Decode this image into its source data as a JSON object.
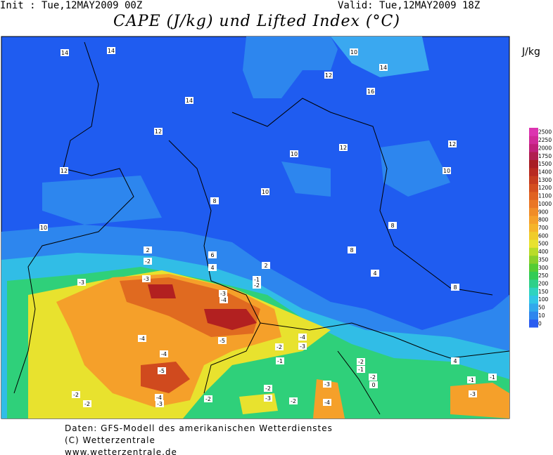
{
  "header": {
    "init": "Init : Tue,12MAY2009 00Z",
    "valid": "Valid: Tue,12MAY2009 18Z",
    "title": "CAPE (J/kg) und Lifted Index (°C)"
  },
  "legend": {
    "unit": "J/kg",
    "ticks": [
      "0",
      "10",
      "50",
      "100",
      "150",
      "200",
      "250",
      "300",
      "350",
      "400",
      "500",
      "600",
      "700",
      "800",
      "900",
      "1000",
      "1100",
      "1200",
      "1300",
      "1400",
      "1500",
      "1750",
      "2000",
      "2250",
      "2500"
    ]
  },
  "contour_labels": [
    "14",
    "14",
    "14",
    "10",
    "12",
    "14",
    "16",
    "12",
    "12",
    "10",
    "12",
    "12",
    "10",
    "10",
    "8",
    "10",
    "8",
    "8",
    "2",
    "-2",
    "6",
    "4",
    "2",
    "-1",
    "-2",
    "4",
    "-3",
    "-3",
    "8",
    "-3",
    "-4",
    "-4",
    "-4",
    "-5",
    "-4",
    "-3",
    "-2",
    "-2",
    "-1",
    "-1",
    "-5",
    "-1",
    "-2",
    "-3",
    "-1",
    "-2",
    "0",
    "-2",
    "-2",
    "-4",
    "-3",
    "-3",
    "-2",
    "-4",
    "-3",
    "-2",
    "4"
  ],
  "footer": [
    "Daten: GFS-Modell des amerikanischen Wetterdienstes",
    "(C) Wetterzentrale",
    "www.wetterzentrale.de"
  ]
}
